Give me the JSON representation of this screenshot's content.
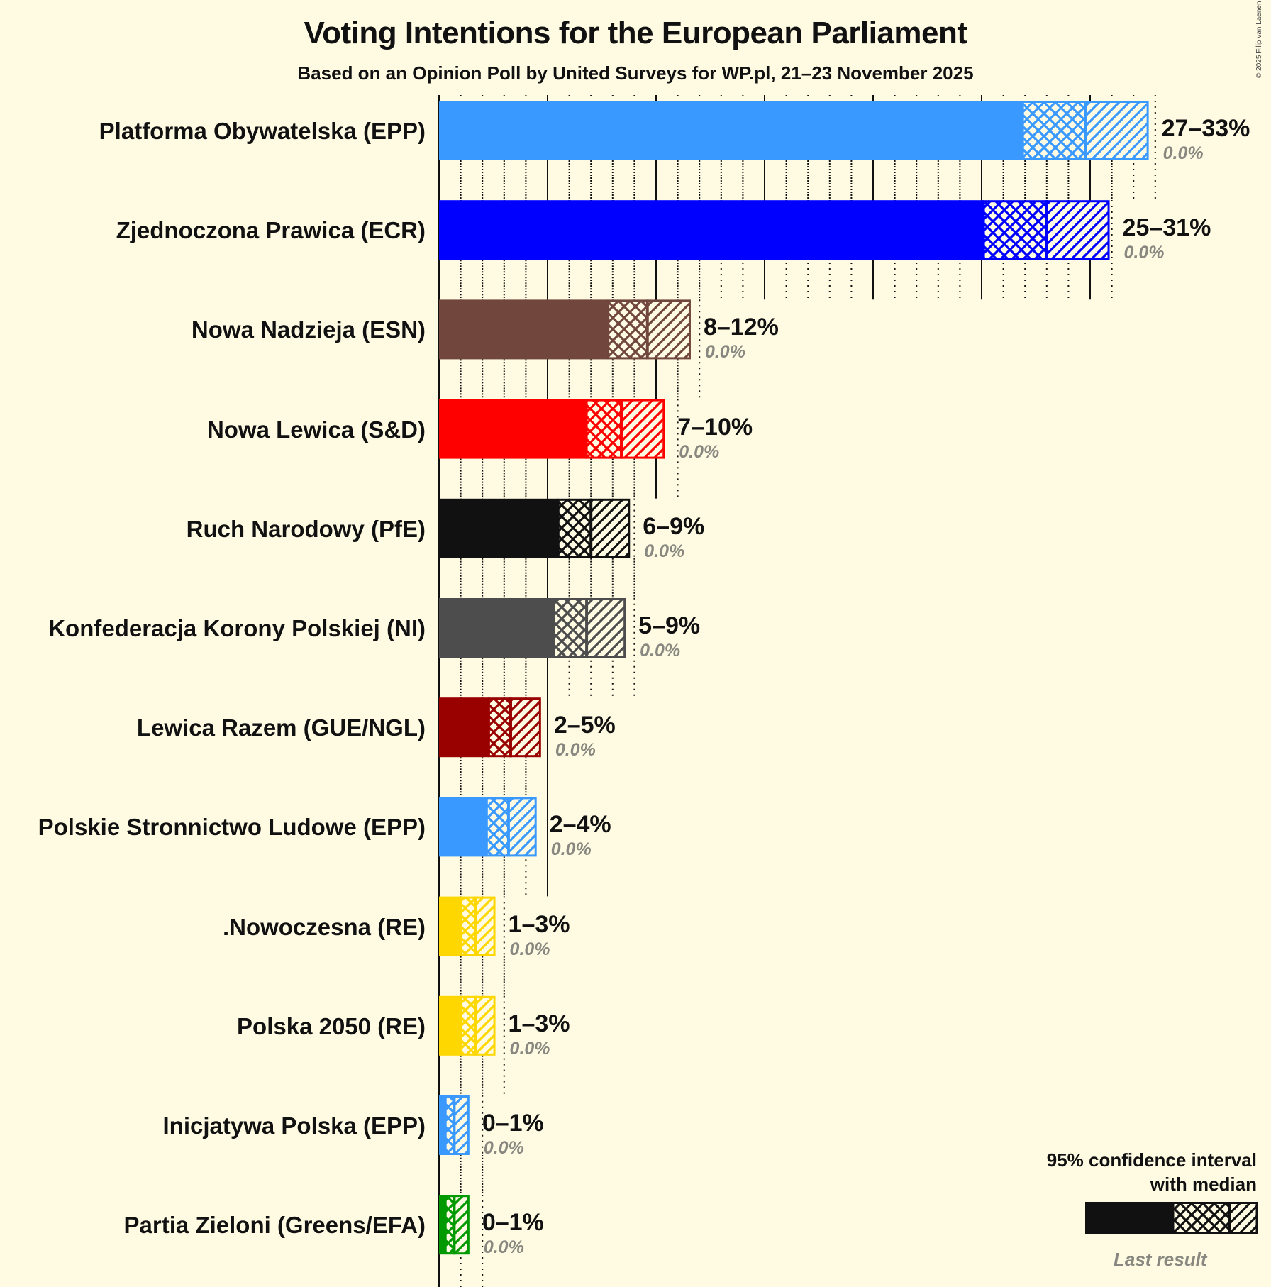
{
  "header": {
    "title": "Voting Intentions for the European Parliament",
    "subtitle": "Based on an Opinion Poll by United Surveys for WP.pl, 21–23 November 2025",
    "copyright": "© 2025 Filip van Laenen"
  },
  "legend": {
    "line1": "95% confidence interval",
    "line2": "with median",
    "last_result": "Last result"
  },
  "chart_data": {
    "type": "bar",
    "orientation": "horizontal",
    "title": "Voting Intentions for the European Parliament",
    "subtitle": "Based on an Opinion Poll by United Surveys for WP.pl, 21–23 November 2025",
    "xlabel": "",
    "ylabel": "",
    "xlim": [
      0,
      33
    ],
    "grid": {
      "major_every": 5,
      "minor_every": 1
    },
    "legend_position": "bottom-right",
    "categories": [
      "Platforma Obywatelska (EPP)",
      "Zjednoczona Prawica (ECR)",
      "Nowa Nadzieja (ESN)",
      "Nowa Lewica (S&D)",
      "Ruch Narodowy (PfE)",
      "Konfederacja Korony Polskiej (NI)",
      "Lewica Razem (GUE/NGL)",
      "Polskie Stronnictwo Ludowe (EPP)",
      ".Nowoczesna (RE)",
      "Polska 2050 (RE)",
      "Inicjatywa Polska (EPP)",
      "Partia Zieloni (Greens/EFA)"
    ],
    "series": [
      {
        "name": "CI low",
        "values": [
          26.9,
          25.1,
          7.8,
          6.8,
          5.5,
          5.3,
          2.3,
          2.2,
          1.0,
          1.0,
          0.3,
          0.3
        ]
      },
      {
        "name": "Median",
        "values": [
          29.8,
          28.0,
          9.6,
          8.4,
          7.0,
          6.8,
          3.3,
          3.2,
          1.7,
          1.7,
          0.7,
          0.7
        ]
      },
      {
        "name": "CI high",
        "values": [
          32.7,
          30.9,
          11.6,
          10.4,
          8.8,
          8.6,
          4.7,
          4.5,
          2.6,
          2.6,
          1.4,
          1.4
        ]
      },
      {
        "name": "Last result",
        "values": [
          0.0,
          0.0,
          0.0,
          0.0,
          0.0,
          0.0,
          0.0,
          0.0,
          0.0,
          0.0,
          0.0,
          0.0
        ]
      }
    ],
    "parties": [
      {
        "name": "Platforma Obywatelska (EPP)",
        "range": "27–33%",
        "last": "0.0%",
        "color": "#3A99FF",
        "low": 26.9,
        "median": 29.8,
        "high": 32.7
      },
      {
        "name": "Zjednoczona Prawica (ECR)",
        "range": "25–31%",
        "last": "0.0%",
        "color": "#0000FF",
        "low": 25.1,
        "median": 28.0,
        "high": 30.9
      },
      {
        "name": "Nowa Nadzieja (ESN)",
        "range": "8–12%",
        "last": "0.0%",
        "color": "#71463C",
        "low": 7.8,
        "median": 9.6,
        "high": 11.6
      },
      {
        "name": "Nowa Lewica (S&D)",
        "range": "7–10%",
        "last": "0.0%",
        "color": "#FF0000",
        "low": 6.8,
        "median": 8.4,
        "high": 10.4
      },
      {
        "name": "Ruch Narodowy (PfE)",
        "range": "6–9%",
        "last": "0.0%",
        "color": "#111111",
        "low": 5.5,
        "median": 7.0,
        "high": 8.8
      },
      {
        "name": "Konfederacja Korony Polskiej (NI)",
        "range": "5–9%",
        "last": "0.0%",
        "color": "#4D4D4D",
        "low": 5.3,
        "median": 6.8,
        "high": 8.6
      },
      {
        "name": "Lewica Razem (GUE/NGL)",
        "range": "2–5%",
        "last": "0.0%",
        "color": "#990000",
        "low": 2.3,
        "median": 3.3,
        "high": 4.7
      },
      {
        "name": "Polskie Stronnictwo Ludowe (EPP)",
        "range": "2–4%",
        "last": "0.0%",
        "color": "#3A99FF",
        "low": 2.2,
        "median": 3.2,
        "high": 4.5
      },
      {
        "name": ".Nowoczesna (RE)",
        "range": "1–3%",
        "last": "0.0%",
        "color": "#FFD700",
        "low": 1.0,
        "median": 1.7,
        "high": 2.6
      },
      {
        "name": "Polska 2050 (RE)",
        "range": "1–3%",
        "last": "0.0%",
        "color": "#FFD700",
        "low": 1.0,
        "median": 1.7,
        "high": 2.6
      },
      {
        "name": "Inicjatywa Polska (EPP)",
        "range": "0–1%",
        "last": "0.0%",
        "color": "#3A99FF",
        "low": 0.3,
        "median": 0.7,
        "high": 1.4
      },
      {
        "name": "Partia Zieloni (Greens/EFA)",
        "range": "0–1%",
        "last": "0.0%",
        "color": "#009900",
        "low": 0.3,
        "median": 0.7,
        "high": 1.4
      }
    ]
  },
  "colors": {
    "background": "#FFFBE3",
    "text": "#111111",
    "last_result": "#888880"
  }
}
